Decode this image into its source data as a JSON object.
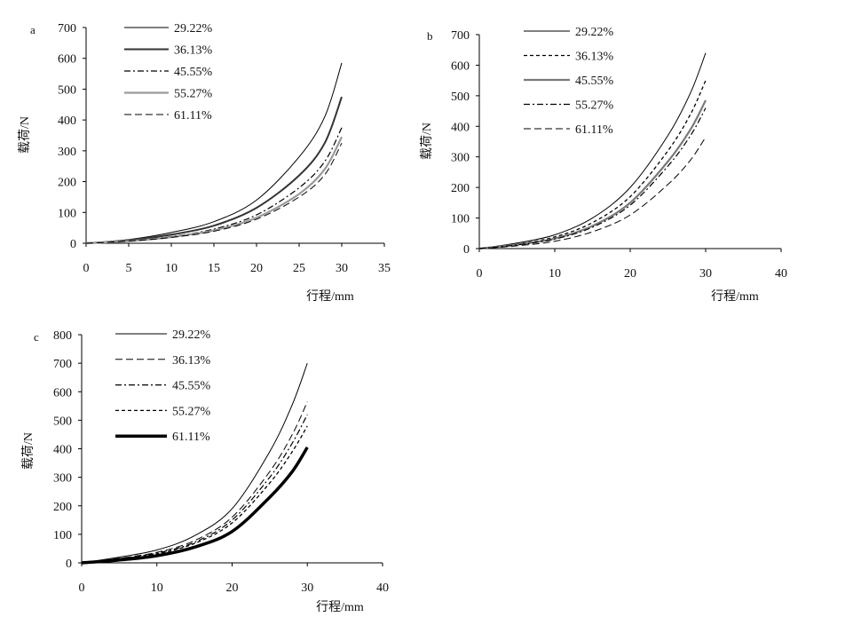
{
  "chart_data": [
    {
      "panel": "a",
      "type": "line",
      "xlabel": "行程/mm",
      "ylabel": "载荷/N",
      "xlim": [
        0,
        35
      ],
      "ylim": [
        0,
        700
      ],
      "xticks": [
        "0",
        "5",
        "10",
        "15",
        "20",
        "25",
        "30",
        "35"
      ],
      "yticks": [
        "0",
        "100",
        "200",
        "300",
        "400",
        "500",
        "600",
        "700"
      ],
      "legend_position": "top-left",
      "series": [
        {
          "name": "29.22%",
          "style": "thin-solid",
          "color": "#000000",
          "x": [
            0,
            5,
            10,
            15,
            20,
            25,
            28,
            30
          ],
          "y": [
            0,
            12,
            35,
            70,
            140,
            280,
            410,
            585
          ]
        },
        {
          "name": "36.13%",
          "style": "thick-solid",
          "color": "#333333",
          "x": [
            0,
            5,
            10,
            15,
            20,
            25,
            28,
            30
          ],
          "y": [
            0,
            10,
            28,
            57,
            115,
            220,
            325,
            475
          ]
        },
        {
          "name": "45.55%",
          "style": "dash-dot",
          "color": "#000000",
          "x": [
            0,
            5,
            10,
            15,
            20,
            25,
            28,
            30
          ],
          "y": [
            0,
            8,
            22,
            46,
            92,
            180,
            265,
            375
          ]
        },
        {
          "name": "55.27%",
          "style": "thick-solid-gray",
          "color": "#9a9a9a",
          "x": [
            0,
            5,
            10,
            15,
            20,
            25,
            28,
            30
          ],
          "y": [
            0,
            7,
            20,
            42,
            83,
            160,
            240,
            345
          ]
        },
        {
          "name": "61.11%",
          "style": "dashed",
          "color": "#000000",
          "x": [
            0,
            5,
            10,
            15,
            20,
            25,
            28,
            30
          ],
          "y": [
            0,
            7,
            19,
            39,
            78,
            150,
            222,
            325
          ]
        }
      ]
    },
    {
      "panel": "b",
      "type": "line",
      "xlabel": "行程/mm",
      "ylabel": "载荷/N",
      "xlim": [
        0,
        40
      ],
      "ylim": [
        0,
        700
      ],
      "xticks": [
        "0",
        "10",
        "20",
        "30",
        "40"
      ],
      "yticks": [
        "0",
        "100",
        "200",
        "300",
        "400",
        "500",
        "600",
        "700"
      ],
      "legend_position": "top-left",
      "series": [
        {
          "name": "29.22%",
          "style": "thin-solid",
          "color": "#000000",
          "x": [
            0,
            5,
            10,
            15,
            20,
            25,
            28,
            30
          ],
          "y": [
            0,
            18,
            45,
            100,
            200,
            370,
            510,
            640
          ]
        },
        {
          "name": "36.13%",
          "style": "short-dash",
          "color": "#000000",
          "x": [
            0,
            5,
            10,
            15,
            20,
            25,
            28,
            30
          ],
          "y": [
            0,
            15,
            38,
            85,
            170,
            320,
            440,
            550
          ]
        },
        {
          "name": "45.55%",
          "style": "thick-solid-gray",
          "color": "#7a7a7a",
          "x": [
            0,
            5,
            10,
            15,
            20,
            25,
            28,
            30
          ],
          "y": [
            0,
            13,
            33,
            74,
            150,
            285,
            390,
            485
          ]
        },
        {
          "name": "55.27%",
          "style": "dash-dot",
          "color": "#000000",
          "x": [
            0,
            5,
            10,
            15,
            20,
            25,
            28,
            30
          ],
          "y": [
            0,
            12,
            31,
            70,
            142,
            270,
            370,
            460
          ]
        },
        {
          "name": "61.11%",
          "style": "dashed",
          "color": "#000000",
          "x": [
            0,
            5,
            10,
            15,
            20,
            25,
            28,
            30
          ],
          "y": [
            0,
            9,
            24,
            55,
            110,
            210,
            290,
            365
          ]
        }
      ]
    },
    {
      "panel": "c",
      "type": "line",
      "xlabel": "行程/mm",
      "ylabel": "载荷/N",
      "xlim": [
        0,
        40
      ],
      "ylim": [
        0,
        800
      ],
      "xticks": [
        "0",
        "10",
        "20",
        "30",
        "40"
      ],
      "yticks": [
        "0",
        "100",
        "200",
        "300",
        "400",
        "500",
        "600",
        "700",
        "800"
      ],
      "legend_position": "top-left",
      "series": [
        {
          "name": "29.22%",
          "style": "thin-solid",
          "color": "#000000",
          "x": [
            0,
            5,
            10,
            15,
            20,
            25,
            28,
            30
          ],
          "y": [
            0,
            20,
            45,
            95,
            190,
            390,
            555,
            700
          ]
        },
        {
          "name": "36.13%",
          "style": "dashed",
          "color": "#000000",
          "x": [
            0,
            5,
            10,
            15,
            20,
            25,
            28,
            30
          ],
          "y": [
            0,
            16,
            37,
            78,
            160,
            320,
            450,
            565
          ]
        },
        {
          "name": "45.55%",
          "style": "dash-dot",
          "color": "#000000",
          "x": [
            0,
            5,
            10,
            15,
            20,
            25,
            28,
            30
          ],
          "y": [
            0,
            15,
            34,
            72,
            150,
            300,
            420,
            520
          ]
        },
        {
          "name": "55.27%",
          "style": "short-dash",
          "color": "#000000",
          "x": [
            0,
            5,
            10,
            15,
            20,
            25,
            28,
            30
          ],
          "y": [
            0,
            14,
            32,
            68,
            140,
            280,
            390,
            480
          ]
        },
        {
          "name": "61.11%",
          "style": "very-thick-solid",
          "color": "#000000",
          "x": [
            0,
            5,
            10,
            15,
            20,
            25,
            28,
            30
          ],
          "y": [
            0,
            10,
            25,
            55,
            110,
            230,
            320,
            405
          ]
        }
      ]
    }
  ]
}
